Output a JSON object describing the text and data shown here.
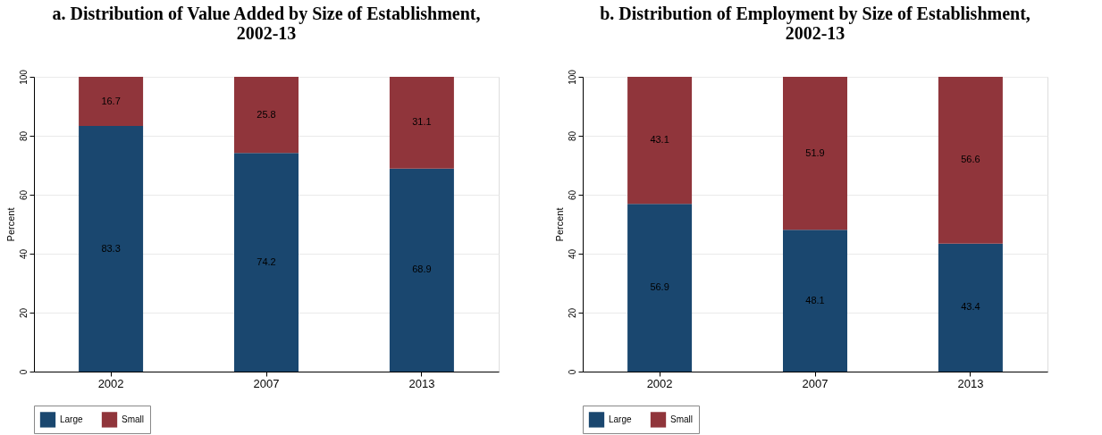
{
  "chart_data": [
    {
      "type": "bar",
      "title": "a. Distribution of Value Added by Size of Establishment, 2002-13",
      "ylabel": "Percent",
      "categories": [
        "2002",
        "2007",
        "2013"
      ],
      "stacked": true,
      "ylim": [
        0,
        100
      ],
      "yticks": [
        0,
        20,
        40,
        60,
        80,
        100
      ],
      "grid": "y",
      "legend": "bottom",
      "data_labels": true,
      "series": [
        {
          "name": "Large",
          "color": "#1a476f",
          "values": [
            83.3,
            74.2,
            68.9
          ]
        },
        {
          "name": "Small",
          "color": "#90353b",
          "values": [
            16.7,
            25.8,
            31.1
          ]
        }
      ]
    },
    {
      "type": "bar",
      "title": "b. Distribution of Employment by Size of Establishment, 2002-13",
      "ylabel": "Percent",
      "categories": [
        "2002",
        "2007",
        "2013"
      ],
      "stacked": true,
      "ylim": [
        0,
        100
      ],
      "yticks": [
        0,
        20,
        40,
        60,
        80,
        100
      ],
      "grid": "y",
      "legend": "bottom",
      "data_labels": true,
      "series": [
        {
          "name": "Large",
          "color": "#1a476f",
          "values": [
            56.9,
            48.1,
            43.4
          ]
        },
        {
          "name": "Small",
          "color": "#90353b",
          "values": [
            43.1,
            51.9,
            56.6
          ]
        }
      ]
    }
  ]
}
